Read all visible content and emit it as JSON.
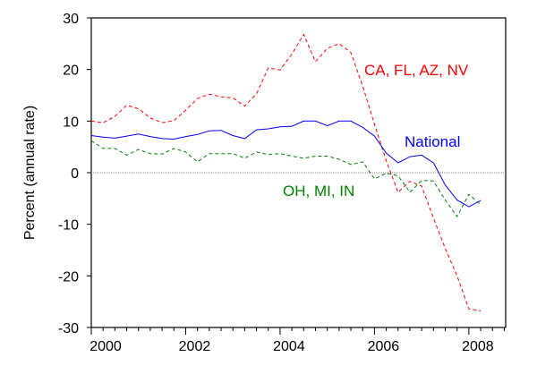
{
  "chart_data": {
    "type": "line",
    "title": "",
    "xlabel": "",
    "ylabel": "Percent (annual rate)",
    "xlim": [
      2000,
      2008.78
    ],
    "ylim": [
      -30,
      30
    ],
    "x_ticks": [
      2000,
      2002,
      2004,
      2006,
      2008
    ],
    "y_ticks": [
      -30,
      -20,
      -10,
      0,
      10,
      20,
      30
    ],
    "x_start": 2000,
    "x_step": 0.25,
    "reference_line": 0,
    "series": [
      {
        "name": "CA, FL, AZ, NV",
        "color": "#ff0000",
        "style": "dashed",
        "values": [
          10.0,
          9.7,
          10.9,
          13.1,
          12.4,
          10.6,
          9.7,
          10.1,
          12.1,
          14.4,
          15.2,
          14.7,
          14.5,
          12.9,
          15.3,
          20.3,
          19.9,
          23.0,
          26.8,
          21.5,
          24.1,
          25.0,
          23.3,
          16.8,
          9.4,
          2.3,
          -3.8,
          -1.7,
          -2.6,
          -8.8,
          -14.7,
          -20.0,
          -26.4,
          -26.8
        ]
      },
      {
        "name": "National",
        "color": "#0000ff",
        "style": "solid",
        "values": [
          7.2,
          6.9,
          6.7,
          7.1,
          7.5,
          7.0,
          6.6,
          6.5,
          7.0,
          7.4,
          8.1,
          8.2,
          7.2,
          6.6,
          8.3,
          8.5,
          8.9,
          9.0,
          10.0,
          10.0,
          9.1,
          10.0,
          10.0,
          8.8,
          7.1,
          3.8,
          1.9,
          3.1,
          3.4,
          1.9,
          -2.4,
          -5.3,
          -6.6,
          -5.4
        ]
      },
      {
        "name": "OH, MI, IN",
        "color": "#008000",
        "style": "dashed",
        "values": [
          6.2,
          4.7,
          4.7,
          3.4,
          4.5,
          3.7,
          3.6,
          4.7,
          4.0,
          2.1,
          3.7,
          3.7,
          3.7,
          2.8,
          4.0,
          3.5,
          3.7,
          3.2,
          2.8,
          3.2,
          3.2,
          2.6,
          1.6,
          2.1,
          -1.2,
          -0.1,
          -0.6,
          -3.8,
          -1.5,
          -1.6,
          -5.3,
          -8.5,
          -4.2,
          -6.2
        ]
      }
    ],
    "annotations": [
      "CA, FL, AZ, NV",
      "National",
      "OH, MI, IN"
    ]
  }
}
